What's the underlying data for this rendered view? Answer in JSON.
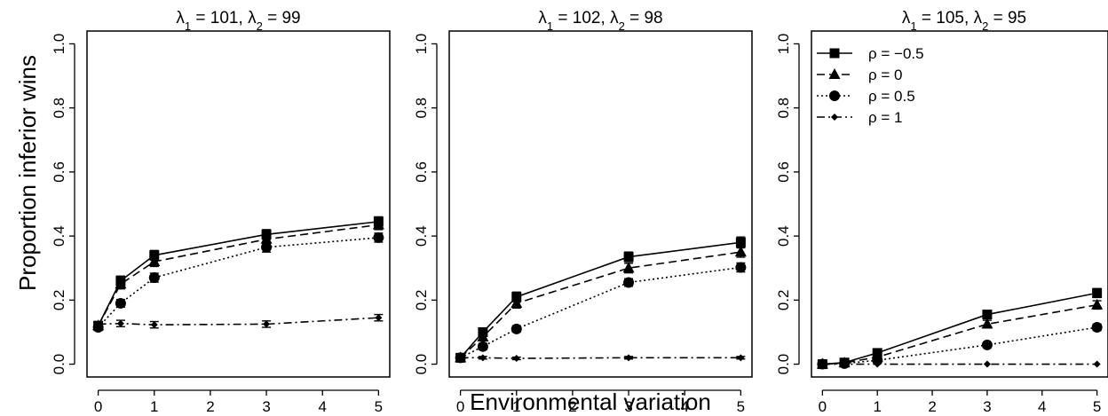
{
  "figure": {
    "ylabel": "Proportion inferior wins",
    "xlabel": "Environmental variation",
    "legend": [
      {
        "label": "ρ = −0.5"
      },
      {
        "label": "ρ = 0"
      },
      {
        "label": "ρ = 0.5"
      },
      {
        "label": "ρ = 1"
      }
    ]
  },
  "chart_data": [
    {
      "type": "line",
      "title_parts": {
        "l1": "λ",
        "s1": "1",
        "v1": " = 101, ",
        "l2": "λ",
        "s2": "2",
        "v2": " = 99"
      },
      "x": [
        0,
        0.4,
        1,
        3,
        5
      ],
      "xticks": [
        "0",
        "1",
        "2",
        "3",
        "4",
        "5"
      ],
      "yticks": [
        "0.0",
        "0.2",
        "0.4",
        "0.6",
        "0.8",
        "1.0"
      ],
      "xlim": [
        -0.2,
        5.2
      ],
      "ylim": [
        -0.04,
        1.04
      ],
      "legend_position": "none",
      "series": [
        {
          "values": [
            0.12,
            0.26,
            0.34,
            0.405,
            0.445
          ],
          "error": [
            0.012,
            0.015,
            0.015,
            0.015,
            0.015
          ],
          "line": "solid",
          "marker": "square"
        },
        {
          "values": [
            0.12,
            0.25,
            0.32,
            0.39,
            0.435
          ],
          "error": [
            0.012,
            0.015,
            0.015,
            0.015,
            0.015
          ],
          "line": "dashed",
          "marker": "triangle"
        },
        {
          "values": [
            0.115,
            0.19,
            0.27,
            0.365,
            0.395
          ],
          "error": [
            0.01,
            0.012,
            0.014,
            0.015,
            0.014
          ],
          "line": "dotted",
          "marker": "circle"
        },
        {
          "values": [
            0.125,
            0.127,
            0.123,
            0.125,
            0.145
          ],
          "error": [
            0.008,
            0.01,
            0.01,
            0.01,
            0.01
          ],
          "line": "dotdash",
          "marker": "diamond"
        }
      ]
    },
    {
      "type": "line",
      "title_parts": {
        "l1": "λ",
        "s1": "1",
        "v1": " = 102, ",
        "l2": "λ",
        "s2": "2",
        "v2": " = 98"
      },
      "x": [
        0,
        0.4,
        1,
        3,
        5
      ],
      "xticks": [
        "0",
        "1",
        "2",
        "3",
        "4",
        "5"
      ],
      "yticks": [
        "0.0",
        "0.2",
        "0.4",
        "0.6",
        "0.8",
        "1.0"
      ],
      "xlim": [
        -0.2,
        5.2
      ],
      "ylim": [
        -0.04,
        1.04
      ],
      "legend_position": "none",
      "series": [
        {
          "values": [
            0.02,
            0.1,
            0.21,
            0.335,
            0.38
          ],
          "error": [
            0.006,
            0.012,
            0.015,
            0.015,
            0.017
          ],
          "line": "solid",
          "marker": "square"
        },
        {
          "values": [
            0.02,
            0.085,
            0.19,
            0.3,
            0.35
          ],
          "error": [
            0.006,
            0.012,
            0.015,
            0.015,
            0.016
          ],
          "line": "dashed",
          "marker": "triangle"
        },
        {
          "values": [
            0.02,
            0.055,
            0.11,
            0.255,
            0.302
          ],
          "error": [
            0.006,
            0.01,
            0.01,
            0.012,
            0.014
          ],
          "line": "dotted",
          "marker": "circle"
        },
        {
          "values": [
            0.02,
            0.02,
            0.018,
            0.02,
            0.02
          ],
          "error": [
            0.004,
            0.004,
            0.004,
            0.004,
            0.004
          ],
          "line": "dotdash",
          "marker": "diamond"
        }
      ]
    },
    {
      "type": "line",
      "title_parts": {
        "l1": "λ",
        "s1": "1",
        "v1": " = 105, ",
        "l2": "λ",
        "s2": "2",
        "v2": " = 95"
      },
      "x": [
        0,
        0.4,
        1,
        3,
        5
      ],
      "xticks": [
        "0",
        "1",
        "2",
        "3",
        "4",
        "5"
      ],
      "yticks": [
        "0.0",
        "0.2",
        "0.4",
        "0.6",
        "0.8",
        "1.0"
      ],
      "xlim": [
        -0.2,
        5.2
      ],
      "ylim": [
        -0.04,
        1.04
      ],
      "legend_position": "top-left",
      "series": [
        {
          "values": [
            0.0,
            0.005,
            0.035,
            0.155,
            0.222
          ],
          "error": [
            0.003,
            0.004,
            0.008,
            0.012,
            0.014
          ],
          "line": "solid",
          "marker": "square"
        },
        {
          "values": [
            0.0,
            0.004,
            0.022,
            0.125,
            0.185
          ],
          "error": [
            0.003,
            0.004,
            0.007,
            0.012,
            0.013
          ],
          "line": "dashed",
          "marker": "triangle"
        },
        {
          "values": [
            0.0,
            0.002,
            0.012,
            0.06,
            0.115
          ],
          "error": [
            0.002,
            0.003,
            0.005,
            0.008,
            0.01
          ],
          "line": "dotted",
          "marker": "circle"
        },
        {
          "values": [
            0.0,
            0.0,
            0.0,
            0.0,
            0.0
          ],
          "error": [
            0.0,
            0.0,
            0.0,
            0.0,
            0.0
          ],
          "line": "dotdash",
          "marker": "diamond"
        }
      ]
    }
  ]
}
